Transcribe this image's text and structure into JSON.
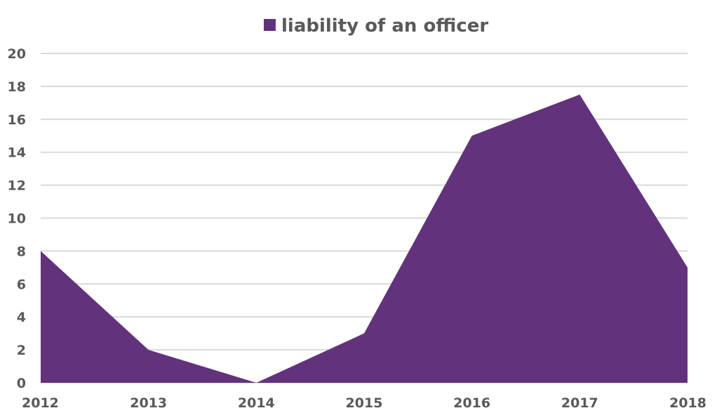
{
  "chart_data": {
    "type": "area",
    "title": "",
    "xlabel": "",
    "ylabel": "",
    "categories": [
      "2012",
      "2013",
      "2014",
      "2015",
      "2016",
      "2017",
      "2018"
    ],
    "series": [
      {
        "name": "liability of an officer",
        "values": [
          8,
          2,
          0,
          3,
          15,
          17.5,
          7
        ],
        "color": "#63327c"
      }
    ],
    "ylim": [
      0,
      20
    ],
    "yticks": [
      0,
      2,
      4,
      6,
      8,
      10,
      12,
      14,
      16,
      18,
      20
    ],
    "grid": true,
    "legend": "top-center"
  }
}
